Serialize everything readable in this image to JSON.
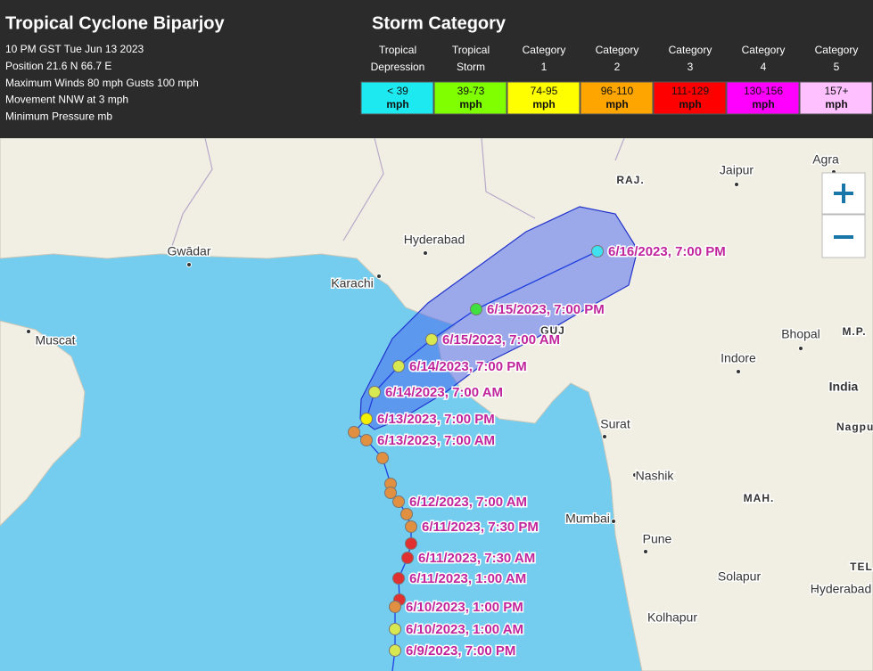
{
  "header": {
    "title": "Tropical Cyclone Biparjoy",
    "lines": [
      "10 PM GST Tue Jun 13 2023",
      "Position 21.6 N 66.7 E",
      "Maximum Winds 80 mph Gusts 100 mph",
      "Movement NNW at 3 mph",
      "Minimum Pressure mb"
    ]
  },
  "legend": {
    "title": "Storm Category",
    "categories": [
      {
        "label": [
          "Tropical",
          "Depression"
        ],
        "range": "< 39",
        "unit": "mph",
        "color": "#1de9f0"
      },
      {
        "label": [
          "Tropical",
          "Storm"
        ],
        "range": "39-73",
        "unit": "mph",
        "color": "#80ff00"
      },
      {
        "label": [
          "Category",
          "1"
        ],
        "range": "74-95",
        "unit": "mph",
        "color": "#ffff00"
      },
      {
        "label": [
          "Category",
          "2"
        ],
        "range": "96-110",
        "unit": "mph",
        "color": "#ffa500"
      },
      {
        "label": [
          "Category",
          "3"
        ],
        "range": "111-129",
        "unit": "mph",
        "color": "#ff0000"
      },
      {
        "label": [
          "Category",
          "4"
        ],
        "range": "130-156",
        "unit": "mph",
        "color": "#ff00ff"
      },
      {
        "label": [
          "Category",
          "5"
        ],
        "range": "157+",
        "unit": "mph",
        "color": "#ffc0ff"
      }
    ]
  },
  "map": {
    "places": [
      "Jaipur",
      "Agra",
      "RAJ.",
      "Gwādar",
      "Hyderabad",
      "Karachi",
      "Muscat",
      "GUJ",
      "Bhopal",
      "M.P.",
      "Indore",
      "India",
      "Surat",
      "Nagpur",
      "Nashik",
      "MAH.",
      "Mumbai",
      "Pune",
      "Solapur",
      "Hyderabad",
      "Kolhapur",
      "TEL"
    ],
    "track": [
      {
        "label": "6/16/2023, 7:00 PM",
        "color": "#40e0f0"
      },
      {
        "label": "6/15/2023, 7:00 PM",
        "color": "#40e040"
      },
      {
        "label": "6/15/2023, 7:00 AM",
        "color": "#d8e850"
      },
      {
        "label": "6/14/2023, 7:00 PM",
        "color": "#d8e850"
      },
      {
        "label": "6/14/2023, 7:00 AM",
        "color": "#d8e850"
      },
      {
        "label": "6/13/2023, 7:00 PM",
        "color": "#f0f000"
      },
      {
        "color": "#e09040"
      },
      {
        "label": "6/13/2023, 7:00 AM",
        "color": "#e09040"
      },
      {
        "color": "#e09040"
      },
      {
        "color": "#e09040"
      },
      {
        "color": "#e09040"
      },
      {
        "label": "6/12/2023, 7:00 AM",
        "color": "#e09040"
      },
      {
        "color": "#e09040"
      },
      {
        "label": "6/11/2023, 7:30 PM",
        "color": "#e09040"
      },
      {
        "color": "#e03030"
      },
      {
        "label": "6/11/2023, 7:30 AM",
        "color": "#e03030"
      },
      {
        "label": "6/11/2023, 1:00 AM",
        "color": "#e03030"
      },
      {
        "color": "#e03030"
      },
      {
        "label": "6/10/2023, 1:00 PM",
        "color": "#e09040"
      },
      {
        "label": "6/10/2023, 1:00 AM",
        "color": "#d8e850"
      },
      {
        "label": "6/9/2023, 7:00 PM",
        "color": "#d8e850"
      }
    ]
  }
}
